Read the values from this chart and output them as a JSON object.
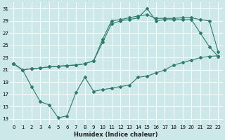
{
  "xlabel": "Humidex (Indice chaleur)",
  "bg_color": "#cce8e8",
  "grid_color": "#ffffff",
  "line_color": "#2e7d6b",
  "xlim": [
    -0.5,
    23.5
  ],
  "ylim": [
    12,
    32
  ],
  "yticks": [
    13,
    15,
    17,
    19,
    21,
    23,
    25,
    27,
    29,
    31
  ],
  "xticks": [
    0,
    1,
    2,
    3,
    4,
    5,
    6,
    7,
    8,
    9,
    10,
    11,
    12,
    13,
    14,
    15,
    16,
    17,
    18,
    19,
    20,
    21,
    22,
    23
  ],
  "series1_x": [
    0,
    1,
    2,
    3,
    4,
    5,
    6,
    7,
    8,
    9,
    10,
    11,
    12,
    13,
    14,
    15,
    16,
    17,
    18,
    19,
    20,
    21,
    22,
    23
  ],
  "series1_y": [
    22.0,
    21.0,
    21.2,
    21.3,
    21.5,
    21.6,
    21.7,
    21.8,
    22.0,
    22.5,
    25.5,
    28.5,
    29.0,
    29.2,
    29.5,
    31.0,
    29.0,
    29.2,
    29.2,
    29.2,
    29.2,
    27.0,
    24.8,
    23.2
  ],
  "series2_x": [
    0,
    1,
    2,
    3,
    4,
    5,
    6,
    7,
    8,
    9,
    10,
    11,
    12,
    13,
    14,
    15,
    16,
    17,
    18,
    19,
    20,
    21,
    22,
    23
  ],
  "series2_y": [
    22.0,
    21.0,
    21.2,
    21.3,
    21.5,
    21.6,
    21.7,
    21.8,
    22.0,
    22.5,
    26.0,
    29.0,
    29.2,
    29.5,
    29.8,
    30.0,
    29.4,
    29.4,
    29.4,
    29.5,
    29.5,
    29.2,
    29.0,
    24.0
  ],
  "series3_x": [
    0,
    1,
    2,
    3,
    4,
    5,
    6,
    7,
    8,
    9,
    10,
    11,
    12,
    13,
    14,
    15,
    16,
    17,
    18,
    19,
    20,
    21,
    22,
    23
  ],
  "series3_y": [
    22.0,
    21.0,
    18.3,
    15.8,
    15.3,
    13.2,
    13.5,
    17.3,
    19.8,
    17.5,
    17.8,
    18.0,
    18.3,
    18.5,
    19.8,
    20.0,
    20.5,
    21.0,
    21.8,
    22.2,
    22.6,
    23.0,
    23.2,
    23.3
  ]
}
